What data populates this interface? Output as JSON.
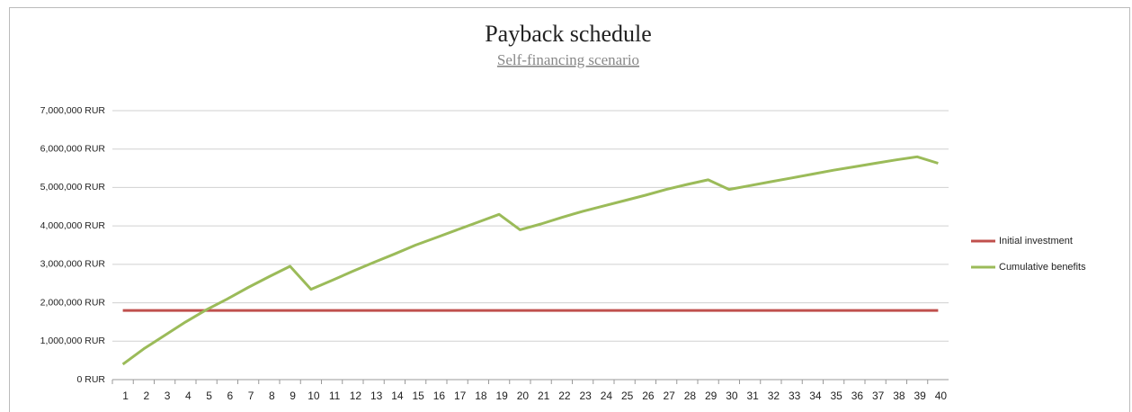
{
  "chart_data": {
    "type": "line",
    "title": "Payback schedule",
    "subtitle": "Self-financing scenario",
    "categories": [
      "1",
      "2",
      "3",
      "4",
      "5",
      "6",
      "7",
      "8",
      "9",
      "10",
      "11",
      "12",
      "13",
      "14",
      "15",
      "16",
      "17",
      "18",
      "19",
      "20",
      "21",
      "22",
      "23",
      "24",
      "25",
      "26",
      "27",
      "28",
      "29",
      "30",
      "31",
      "32",
      "33",
      "34",
      "35",
      "36",
      "37",
      "38",
      "39",
      "40"
    ],
    "series": [
      {
        "name": "Initial investment",
        "color": "#c0504d",
        "values": [
          1800000,
          1800000,
          1800000,
          1800000,
          1800000,
          1800000,
          1800000,
          1800000,
          1800000,
          1800000,
          1800000,
          1800000,
          1800000,
          1800000,
          1800000,
          1800000,
          1800000,
          1800000,
          1800000,
          1800000,
          1800000,
          1800000,
          1800000,
          1800000,
          1800000,
          1800000,
          1800000,
          1800000,
          1800000,
          1800000,
          1800000,
          1800000,
          1800000,
          1800000,
          1800000,
          1800000,
          1800000,
          1800000,
          1800000,
          1800000
        ]
      },
      {
        "name": "Cumulative benefits",
        "color": "#9bbb59",
        "values": [
          400000,
          800000,
          1150000,
          1500000,
          1820000,
          2100000,
          2400000,
          2680000,
          2950000,
          2350000,
          2580000,
          2820000,
          3050000,
          3270000,
          3500000,
          3700000,
          3900000,
          4100000,
          4300000,
          3900000,
          4050000,
          4220000,
          4380000,
          4520000,
          4660000,
          4800000,
          4950000,
          5080000,
          5200000,
          4950000,
          5050000,
          5150000,
          5250000,
          5350000,
          5450000,
          5540000,
          5630000,
          5720000,
          5800000,
          5630000
        ]
      }
    ],
    "ylim": [
      0,
      7000000
    ],
    "yticks": [
      {
        "value": 0,
        "label": "0 RUR"
      },
      {
        "value": 1000000,
        "label": "1,000,000 RUR"
      },
      {
        "value": 2000000,
        "label": "2,000,000 RUR"
      },
      {
        "value": 3000000,
        "label": "3,000,000 RUR"
      },
      {
        "value": 4000000,
        "label": "4,000,000 RUR"
      },
      {
        "value": 5000000,
        "label": "5,000,000 RUR"
      },
      {
        "value": 6000000,
        "label": "6,000,000 RUR"
      },
      {
        "value": 7000000,
        "label": "7,000,000 RUR"
      }
    ],
    "grid": true,
    "legend": "right"
  }
}
